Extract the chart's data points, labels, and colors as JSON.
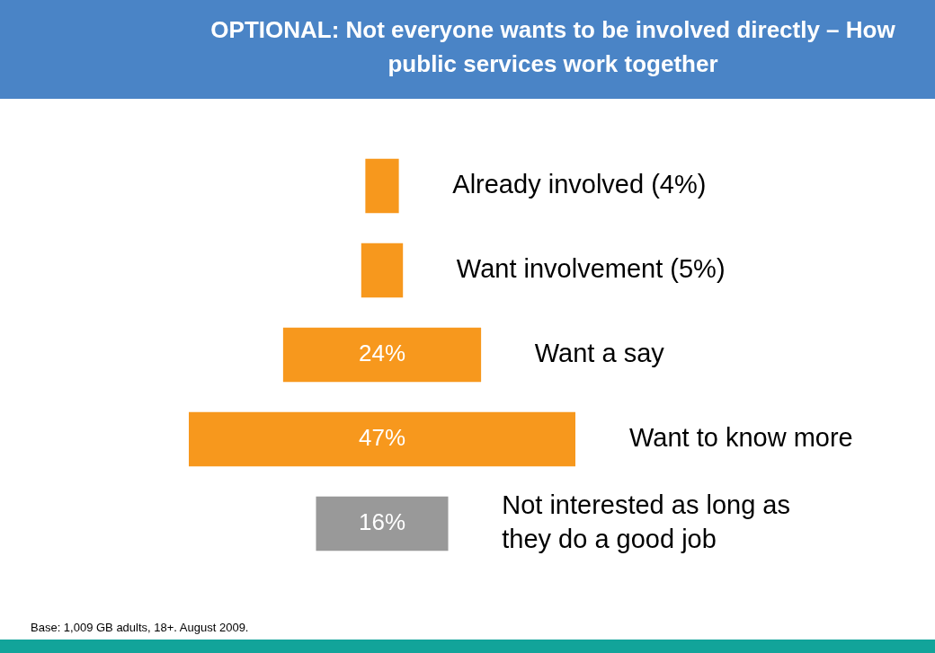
{
  "chart_data": {
    "type": "other",
    "title": "OPTIONAL: Not everyone wants to be involved directly – How public services work together",
    "categories": [
      "Already involved",
      "Want involvement",
      "Want a say",
      "Want to know more",
      "Not interested as long as they do a good job"
    ],
    "values": [
      4,
      5,
      24,
      47,
      16
    ],
    "colors": [
      "#f7981d",
      "#f7981d",
      "#f7981d",
      "#f7981d",
      "#999999"
    ],
    "value_labels": [
      "(4%)",
      "(5%)",
      "24%",
      "47%",
      "16%"
    ],
    "annotations": [
      "Base: 1,009 GB adults, 18+.  August 2009."
    ]
  }
}
